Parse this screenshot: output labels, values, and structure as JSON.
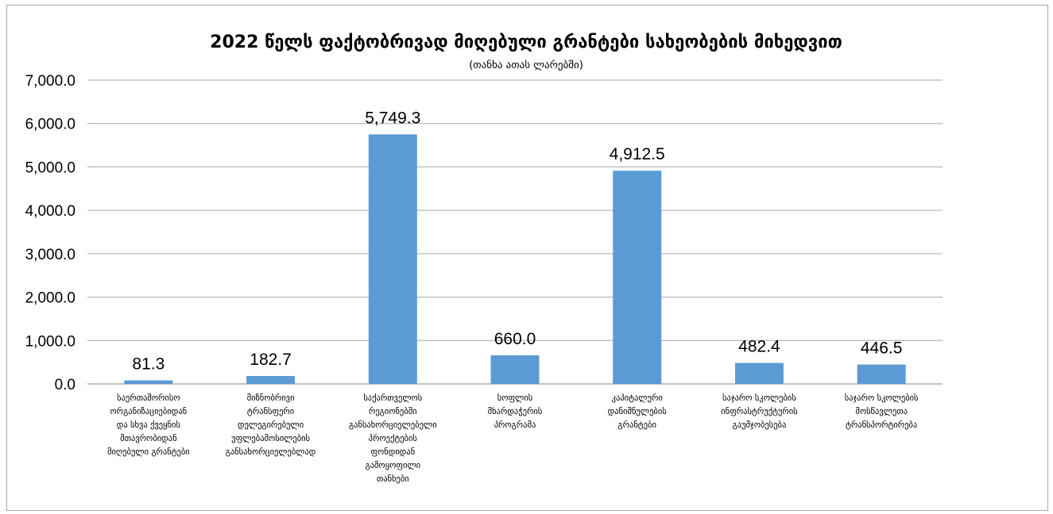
{
  "chart_data": {
    "type": "bar",
    "title": "2022 წელს ფაქტობრივად მიღებული გრანტები სახეობების მიხედვით",
    "subtitle": "(თანხა ათას ლარებში)",
    "xlabel": "",
    "ylabel": "",
    "ylim": [
      0,
      7000
    ],
    "y_ticks": [
      0,
      1000,
      2000,
      3000,
      4000,
      5000,
      6000,
      7000
    ],
    "y_tick_labels": [
      "0.0",
      "1,000.0",
      "2,000.0",
      "3,000.0",
      "4,000.0",
      "5,000.0",
      "6,000.0",
      "7,000.0"
    ],
    "grid": true,
    "legend": "none",
    "bar_color": "#5b9bd5",
    "categories": [
      [
        "საერთაშორისო",
        "ორგანიზაციებიდან",
        "და სხვა ქვეყნის",
        "მთავრობიდან",
        "მიღებული გრანტები"
      ],
      [
        "მიზნობრივი",
        "ტრანსფერი",
        "დელეგირებული",
        "უფლებამოსილების",
        "განსახორციელებლად"
      ],
      [
        "საქართველოს",
        "რეგიონებში",
        "განსახორციელებელი",
        "პროექტების",
        "ფონდიდან",
        "გამოყოფილი",
        "თანხები"
      ],
      [
        "სოფლის",
        "მხარდაჭერის",
        "პროგრამა"
      ],
      [
        "კაპიტალური",
        "დანიშნულების",
        "გრანტები"
      ],
      [
        "საჯარო სკოლების",
        "ინფრასტრუქტურის",
        "გაუმჯობესება"
      ],
      [
        "საჯარო სკოლების",
        "მოსწავლეთა",
        "ტრანსპორტირება"
      ]
    ],
    "values": [
      81.3,
      182.7,
      5749.3,
      660.0,
      4912.5,
      482.4,
      446.5
    ],
    "value_labels": [
      "81.3",
      "182.7",
      "5,749.3",
      "660.0",
      "4,912.5",
      "482.4",
      "446.5"
    ]
  }
}
